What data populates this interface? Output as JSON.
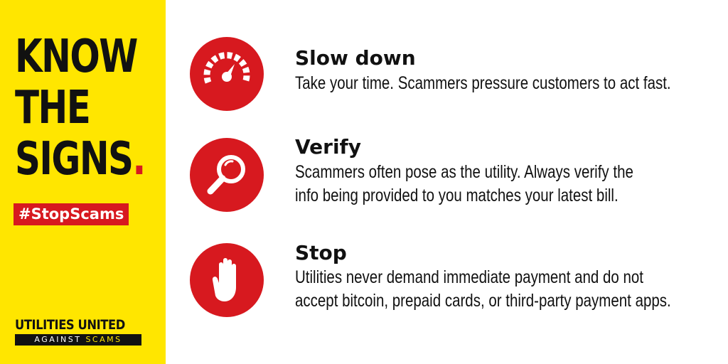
{
  "headline": {
    "line1": "KNOW",
    "line2": "THE",
    "line3": "SIGNS",
    "dot": "."
  },
  "hashtag": "#StopScams",
  "logo": {
    "top": "UTILITIES UNITED",
    "bottom_white": "AGAINST",
    "bottom_yellow": "SCAMS"
  },
  "items": [
    {
      "icon": "speedometer-icon",
      "title": "Slow down",
      "desc_lines": [
        "Take your time. Scammers pressure customers to act fast."
      ]
    },
    {
      "icon": "magnifying-glass-icon",
      "title": "Verify",
      "desc_lines": [
        "Scammers often pose as the utility. Always verify the",
        "info being provided to you matches your latest bill."
      ]
    },
    {
      "icon": "hand-stop-icon",
      "title": "Stop",
      "desc_lines": [
        "Utilities never demand immediate payment and do not",
        "accept bitcoin, prepaid cards, or third-party payment apps."
      ]
    }
  ],
  "colors": {
    "yellow": "#ffe600",
    "red": "#d7191f",
    "black": "#111111"
  }
}
